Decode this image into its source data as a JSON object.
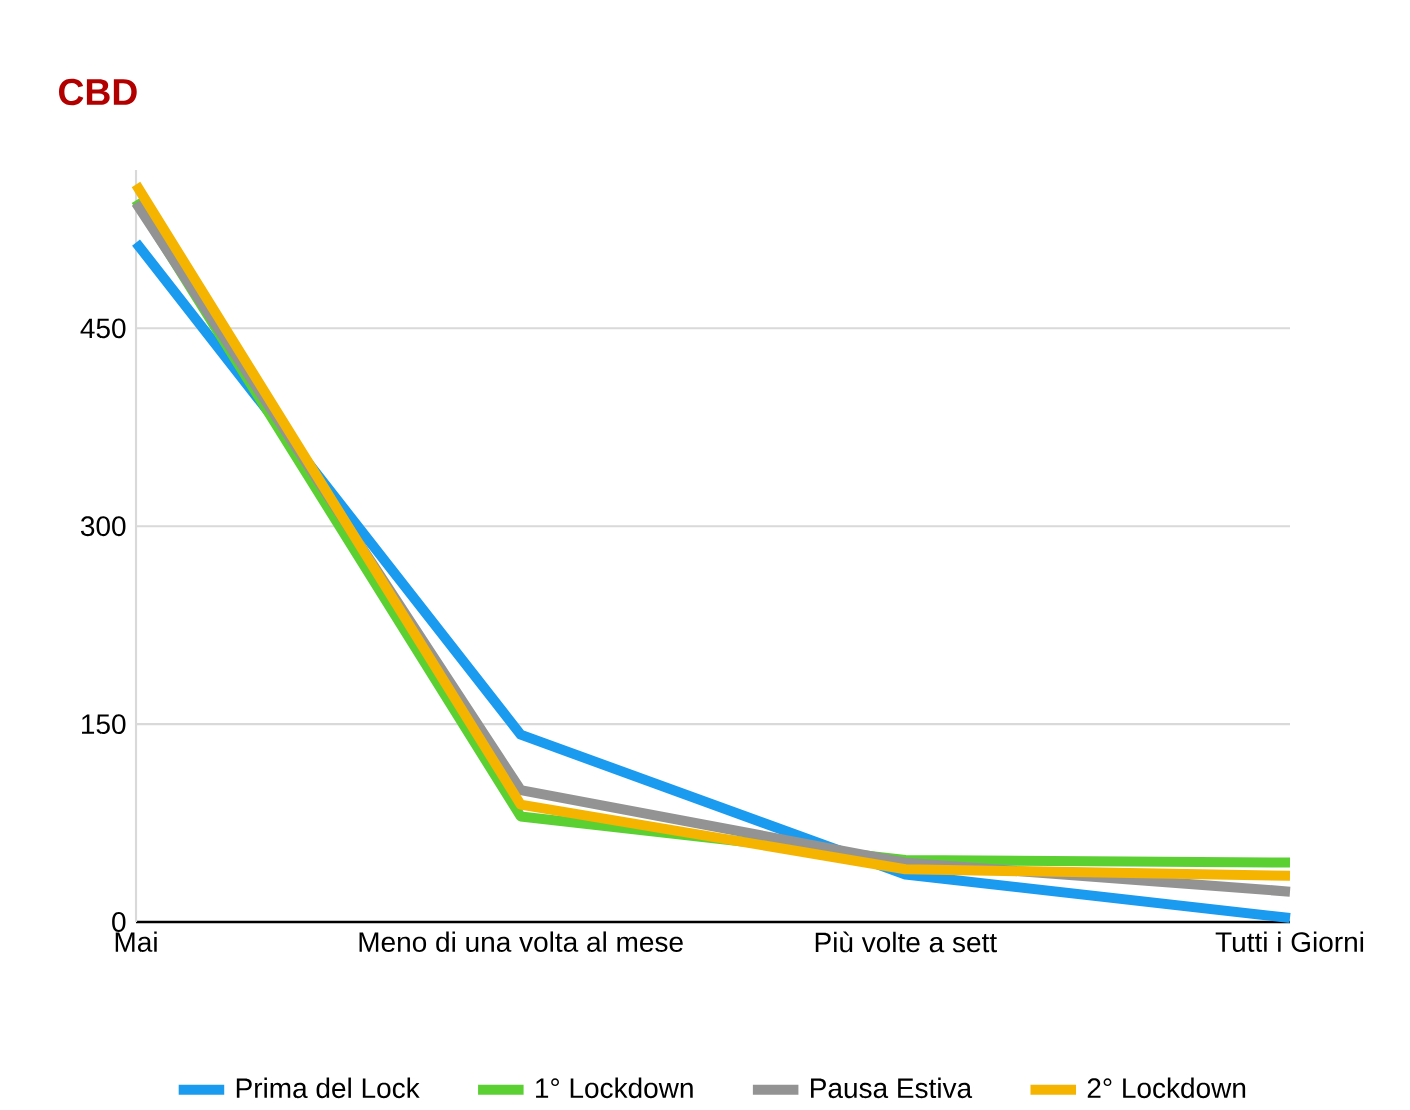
{
  "chart_data": {
    "type": "line",
    "title": "CBD",
    "categories": [
      "Mai",
      "Meno di una volta al mese",
      "Più volte a sett",
      "Tutti i Giorni"
    ],
    "series": [
      {
        "name": "Prima del Lock",
        "color": "#1a9bf0",
        "values": [
          515,
          142,
          36,
          3
        ]
      },
      {
        "name": "1° Lockdown",
        "color": "#5ad032",
        "values": [
          547,
          80,
          47,
          45
        ]
      },
      {
        "name": "Pausa Estiva",
        "color": "#939393",
        "values": [
          545,
          100,
          45,
          23
        ]
      },
      {
        "name": "2° Lockdown",
        "color": "#f5b400",
        "values": [
          559,
          89,
          40,
          35
        ]
      }
    ],
    "ylim": [
      0,
      570
    ],
    "yticks": [
      0,
      150,
      300,
      450
    ],
    "grid": "y",
    "legend": "bottom",
    "marker": "none",
    "line_style": "solid"
  }
}
